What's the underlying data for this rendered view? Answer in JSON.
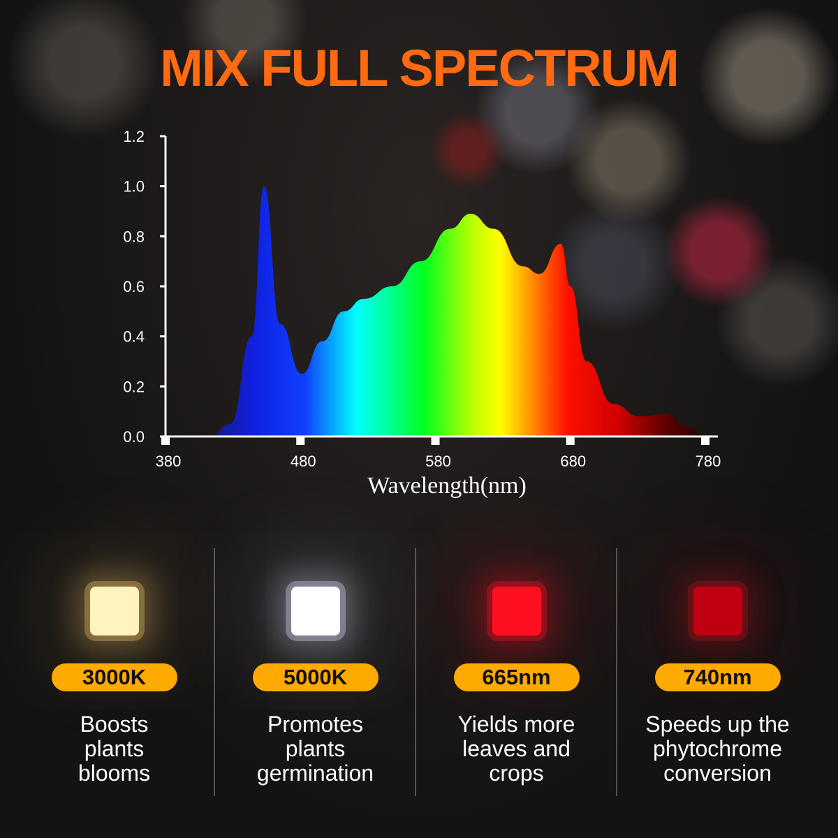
{
  "title": "MIX FULL SPECTRUM",
  "chart_data": {
    "type": "area",
    "xlabel": "Wavelength(nm)",
    "ylabel": "",
    "xlim": [
      380,
      780
    ],
    "ylim": [
      0,
      1.2
    ],
    "xticks": [
      380,
      480,
      580,
      680,
      780
    ],
    "yticks": [
      "0.0",
      "0.2",
      "0.4",
      "0.6",
      "0.8",
      "1.0",
      "1.2"
    ],
    "grid": false,
    "x": [
      400,
      413,
      428,
      444,
      453,
      465,
      481,
      496,
      512,
      527,
      548,
      569,
      591,
      606,
      623,
      645,
      657,
      673,
      680,
      692,
      712,
      731,
      751,
      766,
      780
    ],
    "y": [
      0.0,
      0.0,
      0.05,
      0.4,
      1.0,
      0.45,
      0.25,
      0.38,
      0.5,
      0.55,
      0.6,
      0.7,
      0.83,
      0.89,
      0.83,
      0.68,
      0.65,
      0.77,
      0.6,
      0.3,
      0.13,
      0.08,
      0.09,
      0.04,
      0.0
    ],
    "fill": "visible-spectrum gradient (blue to deep red)"
  },
  "leds": [
    {
      "badge": "3000K",
      "lines": [
        "Boosts",
        "plants",
        "blooms"
      ],
      "color": "#fff3c0",
      "glow": "#d8b060"
    },
    {
      "badge": "5000K",
      "lines": [
        "Promotes",
        "plants",
        "germination"
      ],
      "color": "#ffffff",
      "glow": "#c8c8e0"
    },
    {
      "badge": "665nm",
      "lines": [
        "Yields more",
        "leaves and",
        "crops"
      ],
      "color": "#ff1020",
      "glow": "#e01020"
    },
    {
      "badge": "740nm",
      "lines": [
        "Speeds up the",
        "phytochrome",
        "conversion"
      ],
      "color": "#c00010",
      "glow": "#a01018"
    }
  ],
  "colors": {
    "title": "#ff6a12",
    "badge": "#ffaa00"
  }
}
